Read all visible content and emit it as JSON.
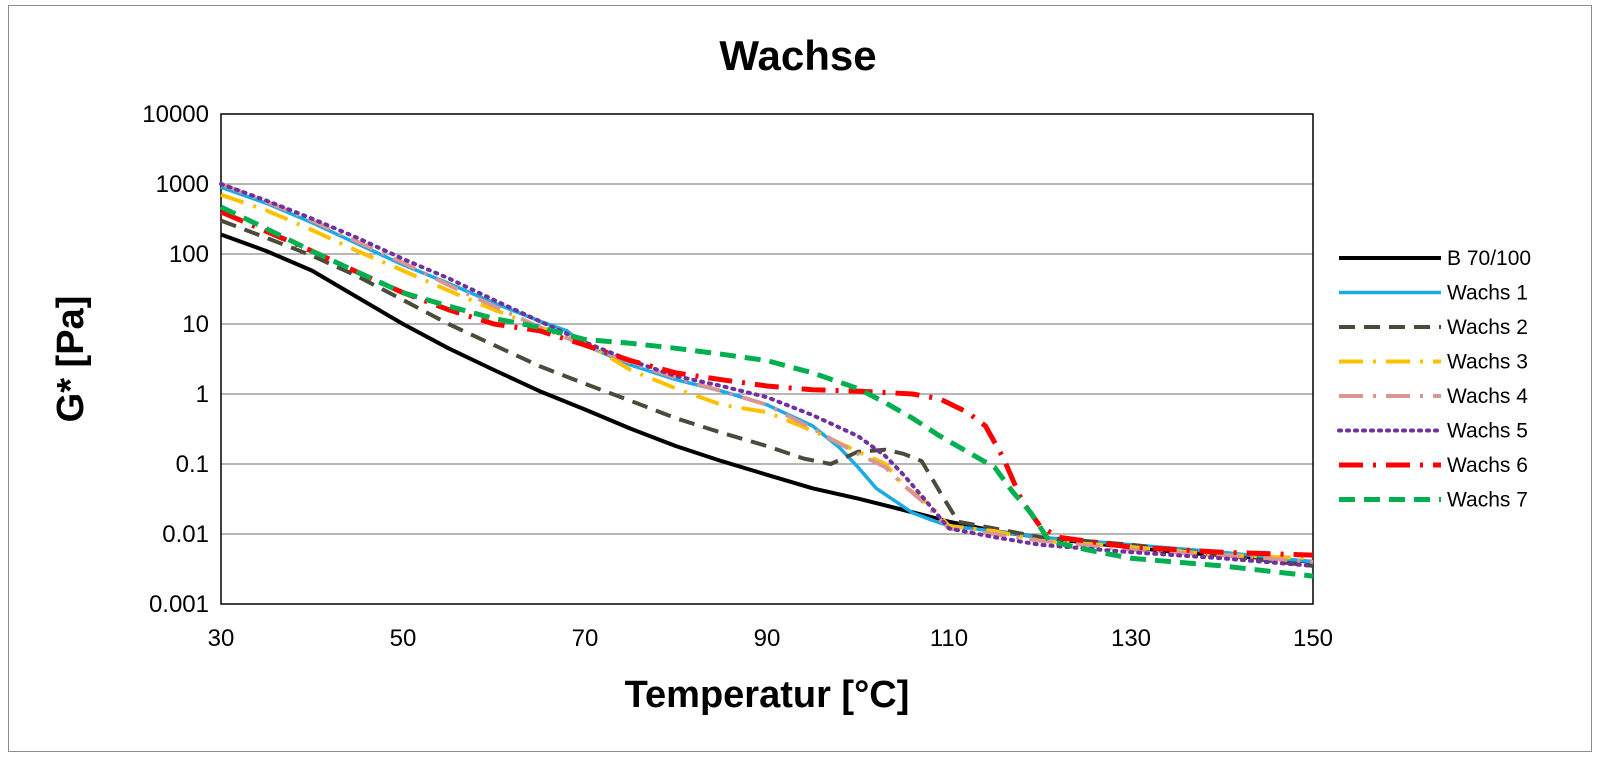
{
  "chart_data": {
    "type": "line",
    "title": "Wachse",
    "xlabel": "Temperatur [°C]",
    "ylabel": "G* [Pa]",
    "xlim": [
      30,
      150
    ],
    "ylim": [
      0.001,
      10000
    ],
    "yscale": "log",
    "x_ticks": [
      "30",
      "50",
      "70",
      "90",
      "110",
      "130",
      "150"
    ],
    "y_ticks": [
      "0.001",
      "0.01",
      "0.1",
      "1",
      "10",
      "100",
      "1000",
      "10000"
    ],
    "grid": "horizontal",
    "legend_position": "right",
    "series": [
      {
        "name": "B 70/100",
        "color": "#000000",
        "dash": "solid",
        "width": 4,
        "points": [
          [
            30,
            190
          ],
          [
            35,
            110
          ],
          [
            40,
            58
          ],
          [
            45,
            24
          ],
          [
            50,
            10
          ],
          [
            55,
            4.5
          ],
          [
            60,
            2.2
          ],
          [
            65,
            1.1
          ],
          [
            70,
            0.6
          ],
          [
            75,
            0.32
          ],
          [
            80,
            0.18
          ],
          [
            85,
            0.11
          ],
          [
            90,
            0.07
          ],
          [
            95,
            0.045
          ],
          [
            100,
            0.032
          ],
          [
            105,
            0.022
          ],
          [
            110,
            0.015
          ],
          [
            115,
            0.011
          ],
          [
            120,
            0.009
          ],
          [
            125,
            0.0075
          ],
          [
            130,
            0.0065
          ],
          [
            135,
            0.0055
          ],
          [
            140,
            0.005
          ],
          [
            145,
            0.0045
          ],
          [
            150,
            0.004
          ]
        ]
      },
      {
        "name": "Wachs 1",
        "color": "#1aaae6",
        "dash": "solid",
        "width": 3.5,
        "points": [
          [
            30,
            900
          ],
          [
            35,
            530
          ],
          [
            40,
            280
          ],
          [
            45,
            140
          ],
          [
            50,
            70
          ],
          [
            55,
            38
          ],
          [
            60,
            20
          ],
          [
            65,
            11
          ],
          [
            68,
            8
          ],
          [
            70,
            5
          ],
          [
            75,
            2.6
          ],
          [
            80,
            1.6
          ],
          [
            85,
            1.1
          ],
          [
            90,
            0.7
          ],
          [
            95,
            0.35
          ],
          [
            98,
            0.17
          ],
          [
            100,
            0.09
          ],
          [
            102,
            0.045
          ],
          [
            104,
            0.03
          ],
          [
            106,
            0.02
          ],
          [
            108,
            0.016
          ],
          [
            110,
            0.013
          ],
          [
            115,
            0.011
          ],
          [
            120,
            0.009
          ],
          [
            130,
            0.007
          ],
          [
            140,
            0.0055
          ],
          [
            150,
            0.004
          ]
        ]
      },
      {
        "name": "Wachs 2",
        "color": "#4b4b3c",
        "dash": "dashed",
        "width": 4,
        "points": [
          [
            30,
            300
          ],
          [
            35,
            170
          ],
          [
            40,
            95
          ],
          [
            45,
            48
          ],
          [
            50,
            22
          ],
          [
            55,
            10
          ],
          [
            60,
            5
          ],
          [
            65,
            2.5
          ],
          [
            70,
            1.4
          ],
          [
            75,
            0.8
          ],
          [
            80,
            0.45
          ],
          [
            85,
            0.28
          ],
          [
            90,
            0.18
          ],
          [
            94,
            0.12
          ],
          [
            97,
            0.1
          ],
          [
            100,
            0.15
          ],
          [
            103,
            0.16
          ],
          [
            105,
            0.14
          ],
          [
            107,
            0.11
          ],
          [
            109,
            0.04
          ],
          [
            111,
            0.015
          ],
          [
            115,
            0.012
          ],
          [
            120,
            0.009
          ],
          [
            130,
            0.007
          ],
          [
            140,
            0.005
          ],
          [
            150,
            0.0035
          ]
        ]
      },
      {
        "name": "Wachs 3",
        "color": "#ffc000",
        "dash": "longdashdot",
        "width": 4,
        "points": [
          [
            30,
            700
          ],
          [
            35,
            420
          ],
          [
            40,
            220
          ],
          [
            45,
            110
          ],
          [
            50,
            58
          ],
          [
            55,
            30
          ],
          [
            60,
            16
          ],
          [
            65,
            9
          ],
          [
            70,
            5.5
          ],
          [
            75,
            2.2
          ],
          [
            80,
            1.2
          ],
          [
            85,
            0.7
          ],
          [
            90,
            0.55
          ],
          [
            95,
            0.3
          ],
          [
            100,
            0.15
          ],
          [
            103,
            0.1
          ],
          [
            105,
            0.05
          ],
          [
            108,
            0.025
          ],
          [
            110,
            0.013
          ],
          [
            115,
            0.011
          ],
          [
            120,
            0.008
          ],
          [
            130,
            0.0065
          ],
          [
            140,
            0.005
          ],
          [
            150,
            0.0045
          ]
        ]
      },
      {
        "name": "Wachs 4",
        "color": "#d99694",
        "dash": "longdashdot",
        "width": 4,
        "points": [
          [
            30,
            1000
          ],
          [
            35,
            560
          ],
          [
            40,
            300
          ],
          [
            45,
            150
          ],
          [
            50,
            75
          ],
          [
            55,
            36
          ],
          [
            60,
            18
          ],
          [
            65,
            9
          ],
          [
            70,
            5
          ],
          [
            75,
            2.8
          ],
          [
            80,
            1.7
          ],
          [
            85,
            1.1
          ],
          [
            90,
            0.7
          ],
          [
            95,
            0.32
          ],
          [
            100,
            0.14
          ],
          [
            103,
            0.09
          ],
          [
            105,
            0.05
          ],
          [
            107,
            0.03
          ],
          [
            110,
            0.012
          ],
          [
            115,
            0.01
          ],
          [
            120,
            0.008
          ],
          [
            130,
            0.006
          ],
          [
            140,
            0.005
          ],
          [
            150,
            0.004
          ]
        ]
      },
      {
        "name": "Wachs 5",
        "color": "#7030a0",
        "dash": "dotted",
        "width": 4,
        "points": [
          [
            30,
            1000
          ],
          [
            35,
            580
          ],
          [
            40,
            320
          ],
          [
            45,
            170
          ],
          [
            50,
            85
          ],
          [
            55,
            45
          ],
          [
            60,
            22
          ],
          [
            65,
            11
          ],
          [
            70,
            5.5
          ],
          [
            75,
            3
          ],
          [
            80,
            1.8
          ],
          [
            85,
            1.3
          ],
          [
            90,
            0.9
          ],
          [
            95,
            0.5
          ],
          [
            100,
            0.25
          ],
          [
            103,
            0.13
          ],
          [
            105,
            0.07
          ],
          [
            107,
            0.035
          ],
          [
            110,
            0.012
          ],
          [
            115,
            0.009
          ],
          [
            120,
            0.007
          ],
          [
            130,
            0.0055
          ],
          [
            140,
            0.0045
          ],
          [
            150,
            0.0035
          ]
        ]
      },
      {
        "name": "Wachs 6",
        "color": "#ff0000",
        "dash": "longdashdot",
        "width": 5,
        "points": [
          [
            30,
            400
          ],
          [
            35,
            210
          ],
          [
            40,
            110
          ],
          [
            45,
            55
          ],
          [
            50,
            28
          ],
          [
            55,
            16
          ],
          [
            60,
            10
          ],
          [
            65,
            8
          ],
          [
            70,
            5
          ],
          [
            75,
            3
          ],
          [
            80,
            2
          ],
          [
            85,
            1.6
          ],
          [
            90,
            1.3
          ],
          [
            95,
            1.15
          ],
          [
            100,
            1.1
          ],
          [
            103,
            1.05
          ],
          [
            106,
            1.0
          ],
          [
            109,
            0.85
          ],
          [
            112,
            0.55
          ],
          [
            114,
            0.35
          ],
          [
            116,
            0.12
          ],
          [
            118,
            0.03
          ],
          [
            120,
            0.013
          ],
          [
            122,
            0.009
          ],
          [
            130,
            0.0065
          ],
          [
            140,
            0.0055
          ],
          [
            150,
            0.005
          ]
        ]
      },
      {
        "name": "Wachs 7",
        "color": "#00b050",
        "dash": "dashed",
        "width": 5,
        "points": [
          [
            30,
            470
          ],
          [
            35,
            230
          ],
          [
            40,
            110
          ],
          [
            45,
            55
          ],
          [
            50,
            28
          ],
          [
            55,
            18
          ],
          [
            60,
            12
          ],
          [
            65,
            9
          ],
          [
            70,
            6
          ],
          [
            75,
            5.3
          ],
          [
            80,
            4.5
          ],
          [
            85,
            3.7
          ],
          [
            90,
            3
          ],
          [
            95,
            2
          ],
          [
            100,
            1.2
          ],
          [
            103,
            0.75
          ],
          [
            106,
            0.45
          ],
          [
            109,
            0.25
          ],
          [
            112,
            0.15
          ],
          [
            115,
            0.09
          ],
          [
            117,
            0.04
          ],
          [
            119,
            0.02
          ],
          [
            121,
            0.008
          ],
          [
            125,
            0.006
          ],
          [
            130,
            0.0045
          ],
          [
            140,
            0.0035
          ],
          [
            150,
            0.0025
          ]
        ]
      }
    ]
  }
}
